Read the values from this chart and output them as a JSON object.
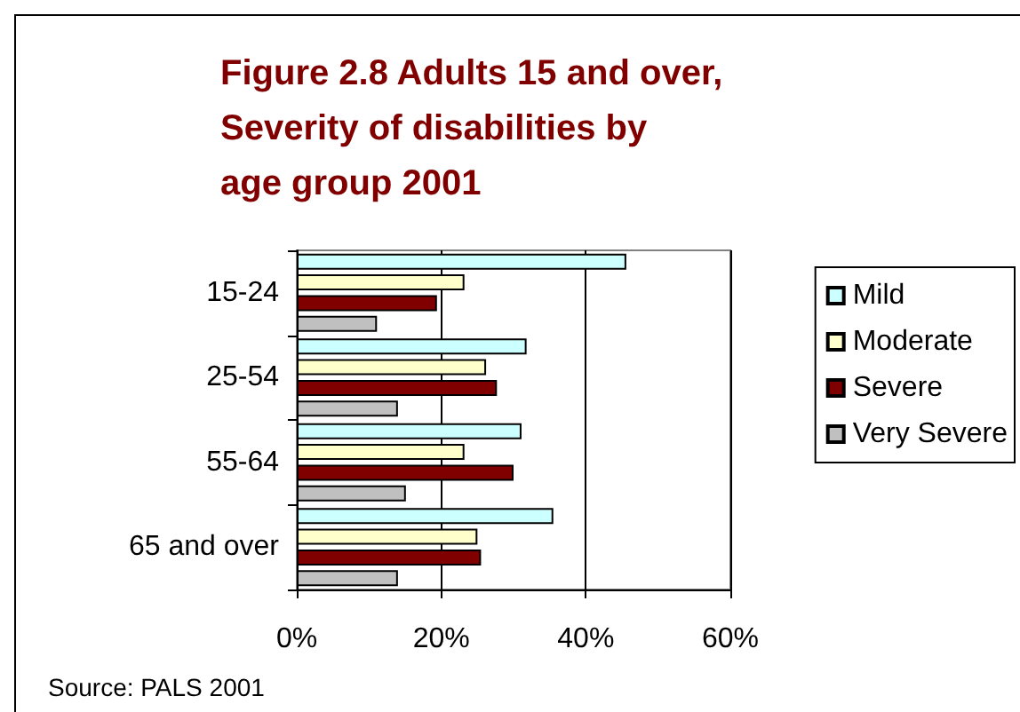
{
  "chart_data": {
    "type": "bar",
    "orientation": "horizontal",
    "title": "Figure 2.8 Adults 15 and over,\nSeverity of disabilities by\nage group 2001",
    "categories": [
      "15-24",
      "25-54",
      "55-64",
      "65 and over"
    ],
    "series": [
      {
        "name": "Mild",
        "color": "#ccffff",
        "values": [
          45.6,
          31.8,
          31.1,
          35.5
        ]
      },
      {
        "name": "Moderate",
        "color": "#ffffcc",
        "values": [
          23.2,
          26.2,
          23.2,
          25.0
        ]
      },
      {
        "name": "Severe",
        "color": "#800000",
        "values": [
          19.4,
          27.7,
          30.0,
          25.5
        ]
      },
      {
        "name": "Very Severe",
        "color": "#c0c0c0",
        "values": [
          11.1,
          14.0,
          15.1,
          14.0
        ]
      }
    ],
    "xlim": [
      0,
      60
    ],
    "xticks": [
      {
        "value": 0,
        "label": "0%"
      },
      {
        "value": 20,
        "label": "20%"
      },
      {
        "value": 40,
        "label": "40%"
      },
      {
        "value": 60,
        "label": "60%"
      }
    ],
    "grid": "x",
    "legend": "right",
    "annotations": [
      "Source: PALS 2001"
    ]
  }
}
